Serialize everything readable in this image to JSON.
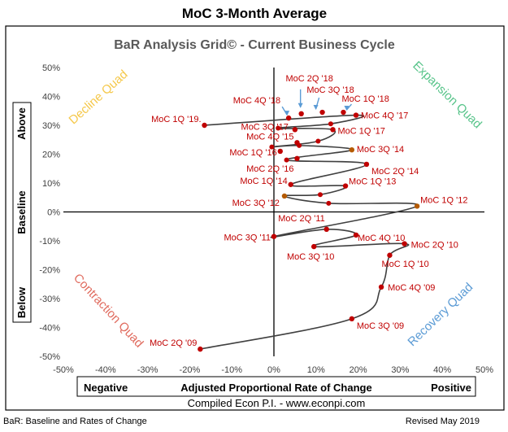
{
  "page": {
    "main_title": "MoC 3-Month Average",
    "footer_left": "BaR: Baseline and Rates of Change",
    "footer_right": "Revised May 2019",
    "compiled": "Compiled Econ P.I. - www.econpi.com"
  },
  "chart_data": {
    "type": "scatter",
    "title": "BaR Analysis Grid© - Current Business Cycle",
    "xlabel": "Adjusted Proportional Rate of Change",
    "x_left_label": "Negative",
    "x_right_label": "Positive",
    "ylabel": "Baseline",
    "y_top_label": "Above",
    "y_bottom_label": "Below",
    "xlim": [
      -50,
      50
    ],
    "ylim": [
      -50,
      50
    ],
    "x_ticks": [
      "-50%",
      "-40%",
      "-30%",
      "-20%",
      "-10%",
      "0%",
      "10%",
      "20%",
      "30%",
      "40%",
      "50%"
    ],
    "y_ticks": [
      "50%",
      "40%",
      "30%",
      "20%",
      "10%",
      "0%",
      "-10%",
      "-20%",
      "-30%",
      "-40%",
      "-50%"
    ],
    "grid": false,
    "colors": {
      "line": "#404040",
      "marker": "#c00000",
      "marker_alt": "#b45a00",
      "label": "#c00000",
      "arrow": "#5b9bd5"
    },
    "quadrants": [
      {
        "name": "Decline Quad",
        "color": "#f5c84a"
      },
      {
        "name": "Expansion Quad",
        "color": "#58c48a"
      },
      {
        "name": "Contraction Quad",
        "color": "#e06b5e"
      },
      {
        "name": "Recovery Quad",
        "color": "#5b9bd5"
      }
    ],
    "points": [
      {
        "label": "MoC 2Q '09",
        "x": -17.5,
        "y": -47.5
      },
      {
        "label": "MoC 3Q '09",
        "x": 18.5,
        "y": -37.0
      },
      {
        "label": "MoC 4Q '09",
        "x": 25.5,
        "y": -26.0
      },
      {
        "label": "MoC 1Q '10",
        "x": 27.5,
        "y": -15.0
      },
      {
        "label": "MoC 2Q '10",
        "x": 31.0,
        "y": -11.0
      },
      {
        "label": "MoC 3Q '10",
        "x": 9.5,
        "y": -12.0
      },
      {
        "label": "MoC 4Q '10",
        "x": 19.5,
        "y": -8.0
      },
      {
        "label": "MoC  2Q '11",
        "x": 12.5,
        "y": -6.0
      },
      {
        "label": "MoC  3Q '11",
        "x": 0.0,
        "y": -8.5
      },
      {
        "label": "MoC 1Q '12",
        "x": 34.0,
        "y": 2.0
      },
      {
        "label": "MoC 3Q '12",
        "x": 2.5,
        "y": 5.5
      },
      {
        "label": "MoC 1Q '13",
        "x": 17.0,
        "y": 9.0
      },
      {
        "label": "MoC 1Q '14",
        "x": 4.0,
        "y": 9.5
      },
      {
        "label": "MoC 2Q '14",
        "x": 22.0,
        "y": 16.5
      },
      {
        "label": "MoC 3Q '14",
        "x": 18.5,
        "y": 21.5
      },
      {
        "label": "MoC 4Q '15",
        "x": 5.5,
        "y": 24.0
      },
      {
        "label": "MoC 1Q '16",
        "x": 1.5,
        "y": 21.0
      },
      {
        "label": "MoC 2Q '16",
        "x": 5.5,
        "y": 18.5
      },
      {
        "label": "MoC 3Q '17",
        "x": 5.0,
        "y": 28.5
      },
      {
        "label": "MoC 1Q '17",
        "x": 14.0,
        "y": 28.5
      },
      {
        "label": "MoC 4Q '17",
        "x": 19.5,
        "y": 33.5
      },
      {
        "label": "MoC 1Q '18",
        "x": 16.5,
        "y": 34.5
      },
      {
        "label": "MoC 2Q '18",
        "x": 6.5,
        "y": 34.0
      },
      {
        "label": "MoC 3Q '18",
        "x": 11.5,
        "y": 34.5
      },
      {
        "label": "MoC 4Q '18",
        "x": 3.5,
        "y": 32.5
      },
      {
        "label": "MoC 1Q '19.",
        "x": -16.5,
        "y": 30.0
      }
    ],
    "extra_points": [
      {
        "x": -0.5,
        "y": 22.5
      },
      {
        "x": 10.5,
        "y": 24.5
      },
      {
        "x": 13.5,
        "y": 30.5
      },
      {
        "x": 1.0,
        "y": 29.0
      },
      {
        "x": 11.0,
        "y": 6.0
      },
      {
        "x": 13.0,
        "y": 3.0
      },
      {
        "x": 6.0,
        "y": 23.0
      },
      {
        "x": 3.0,
        "y": 18.0
      }
    ],
    "path": [
      [
        -17.5,
        -47.5
      ],
      [
        18.5,
        -37.0
      ],
      [
        25.5,
        -26.0
      ],
      [
        27.5,
        -15.0
      ],
      [
        31.0,
        -11.0
      ],
      [
        9.5,
        -12.0
      ],
      [
        19.5,
        -8.0
      ],
      [
        12.5,
        -6.0
      ],
      [
        0.0,
        -8.5
      ],
      [
        34.0,
        2.0
      ],
      [
        13.0,
        3.0
      ],
      [
        2.5,
        5.5
      ],
      [
        11.0,
        6.0
      ],
      [
        17.0,
        9.0
      ],
      [
        4.0,
        9.5
      ],
      [
        22.0,
        16.5
      ],
      [
        3.0,
        18.0
      ],
      [
        18.5,
        21.5
      ],
      [
        6.0,
        23.0
      ],
      [
        -0.5,
        22.5
      ],
      [
        10.5,
        24.5
      ],
      [
        14.0,
        28.5
      ],
      [
        1.0,
        29.0
      ],
      [
        13.5,
        30.5
      ],
      [
        19.5,
        33.5
      ],
      [
        -16.5,
        30.0
      ]
    ]
  }
}
